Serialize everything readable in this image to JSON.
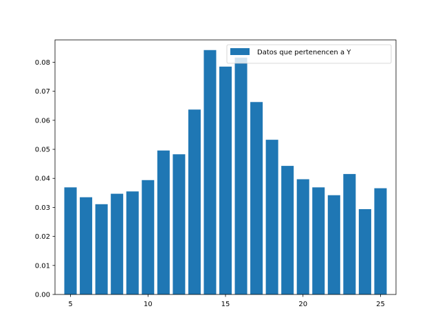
{
  "chart_data": {
    "type": "bar",
    "x": [
      5,
      6,
      7,
      8,
      9,
      10,
      11,
      12,
      13,
      14,
      15,
      16,
      17,
      18,
      19,
      20,
      21,
      22,
      23,
      24,
      25
    ],
    "values": [
      0.0369,
      0.0335,
      0.0311,
      0.0347,
      0.0355,
      0.0394,
      0.0496,
      0.0483,
      0.0637,
      0.0842,
      0.0785,
      0.0816,
      0.0663,
      0.0533,
      0.0443,
      0.0397,
      0.0369,
      0.0342,
      0.0415,
      0.0294,
      0.0366
    ],
    "series_name": "Datos que pertenencen a Y",
    "color": "#1f77b4",
    "xlim": [
      4,
      26
    ],
    "ylim": [
      0,
      0.0877
    ],
    "xticks": [
      5,
      10,
      15,
      20,
      25
    ],
    "xtick_labels": [
      "5",
      "10",
      "15",
      "20",
      "25"
    ],
    "yticks": [
      0,
      0.01,
      0.02,
      0.03,
      0.04,
      0.05,
      0.06,
      0.07,
      0.08
    ],
    "ytick_labels": [
      "0.00",
      "0.01",
      "0.02",
      "0.03",
      "0.04",
      "0.05",
      "0.06",
      "0.07",
      "0.08"
    ],
    "legend_position": "top-right",
    "grid": false
  }
}
